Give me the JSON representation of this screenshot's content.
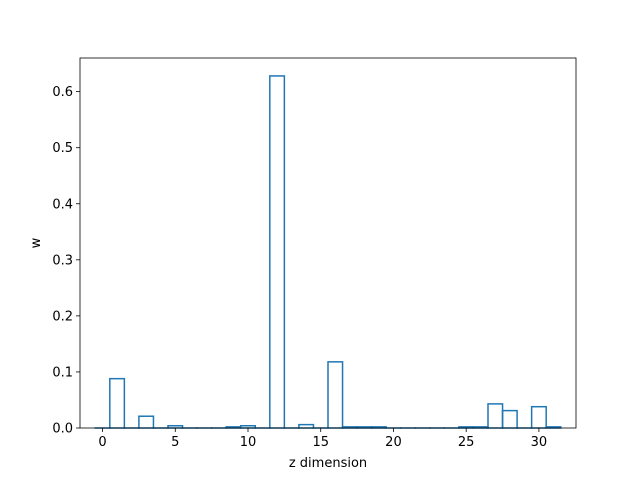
{
  "chart_data": {
    "type": "bar",
    "style": "step-outline histogram",
    "title": "",
    "xlabel": "z dimension",
    "ylabel": "w",
    "xlim": [
      -1.55,
      32.55
    ],
    "ylim": [
      0,
      0.66
    ],
    "xticks": [
      0,
      5,
      10,
      15,
      20,
      25,
      30
    ],
    "yticks": [
      0.0,
      0.1,
      0.2,
      0.3,
      0.4,
      0.5,
      0.6
    ],
    "x": [
      0,
      1,
      2,
      3,
      4,
      5,
      6,
      7,
      8,
      9,
      10,
      11,
      12,
      13,
      14,
      15,
      16,
      17,
      18,
      19,
      20,
      21,
      22,
      23,
      24,
      25,
      26,
      27,
      28,
      29,
      30,
      31
    ],
    "values": [
      0.0,
      0.088,
      0.0,
      0.021,
      0.0,
      0.004,
      0.0,
      0.0,
      0.0,
      0.002,
      0.004,
      0.0,
      0.628,
      0.0,
      0.006,
      0.0,
      0.118,
      0.002,
      0.002,
      0.002,
      0.0,
      0.0,
      0.0,
      0.0,
      0.0,
      0.002,
      0.002,
      0.043,
      0.031,
      0.0,
      0.038,
      0.002
    ],
    "line_color": "#1f77b4",
    "grid": false,
    "legend": "none"
  }
}
